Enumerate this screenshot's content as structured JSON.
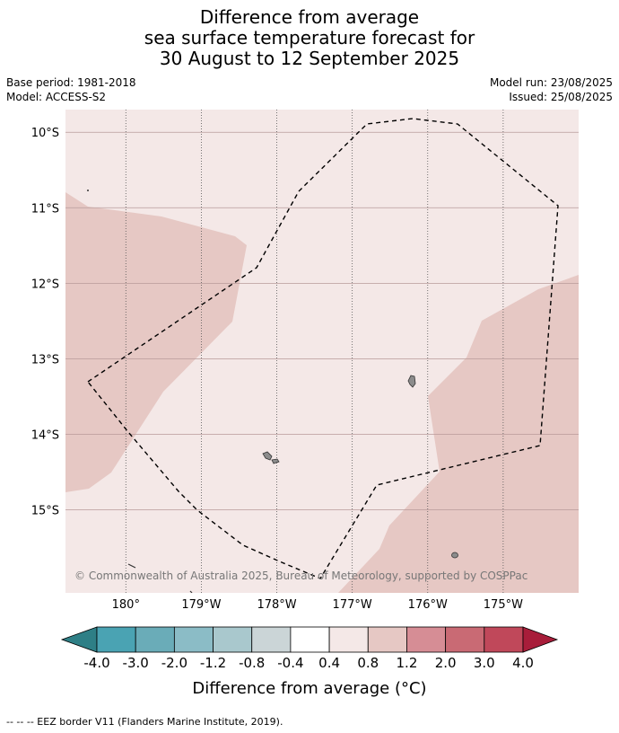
{
  "title_lines": [
    "Difference from average",
    "sea surface temperature forecast for",
    "30 August to 12 September 2025"
  ],
  "meta": {
    "base_period": "Base period: 1981-2018",
    "model": "Model: ACCESS-S2",
    "model_run": "Model run: 23/08/2025",
    "issued": "Issued: 25/08/2025"
  },
  "map": {
    "lon_range": [
      180.8,
      174.0
    ],
    "lat_range": [
      -9.7,
      -16.1
    ],
    "lat_ticks": [
      {
        "value": -10,
        "label": "10°S"
      },
      {
        "value": -11,
        "label": "11°S"
      },
      {
        "value": -12,
        "label": "12°S"
      },
      {
        "value": -13,
        "label": "13°S"
      },
      {
        "value": -14,
        "label": "14°S"
      },
      {
        "value": -15,
        "label": "15°S"
      }
    ],
    "lon_ticks": [
      {
        "value": 180,
        "label": "180°"
      },
      {
        "value": 179,
        "label": "179°W"
      },
      {
        "value": 178,
        "label": "178°W"
      },
      {
        "value": 177,
        "label": "177°W"
      },
      {
        "value": 176,
        "label": "176°W"
      },
      {
        "value": 175,
        "label": "175°W"
      }
    ],
    "background_color": "#f4e8e7",
    "anomaly_zone_color": "#e6c8c4",
    "copyright": "© Commonwealth of Australia 2025, Bureau of Meteorology, supported by COSPPac"
  },
  "colorbar": {
    "labels": [
      "-4.0",
      "-3.0",
      "-2.0",
      "-1.2",
      "-0.8",
      "-0.4",
      "0.4",
      "0.8",
      "1.2",
      "2.0",
      "3.0",
      "4.0"
    ],
    "colors": [
      "#2e7f86",
      "#4aa3b3",
      "#6aacb8",
      "#8bbcc6",
      "#a9c8cd",
      "#cbd5d7",
      "#ffffff",
      "#f4e8e7",
      "#e6c8c4",
      "#d68d95",
      "#c96a74",
      "#c0485a",
      "#a81d3a"
    ],
    "label": "Difference from average (°C)"
  },
  "footnote": "--  --  -- EEZ border V11 (Flanders Marine Institute, 2019)."
}
